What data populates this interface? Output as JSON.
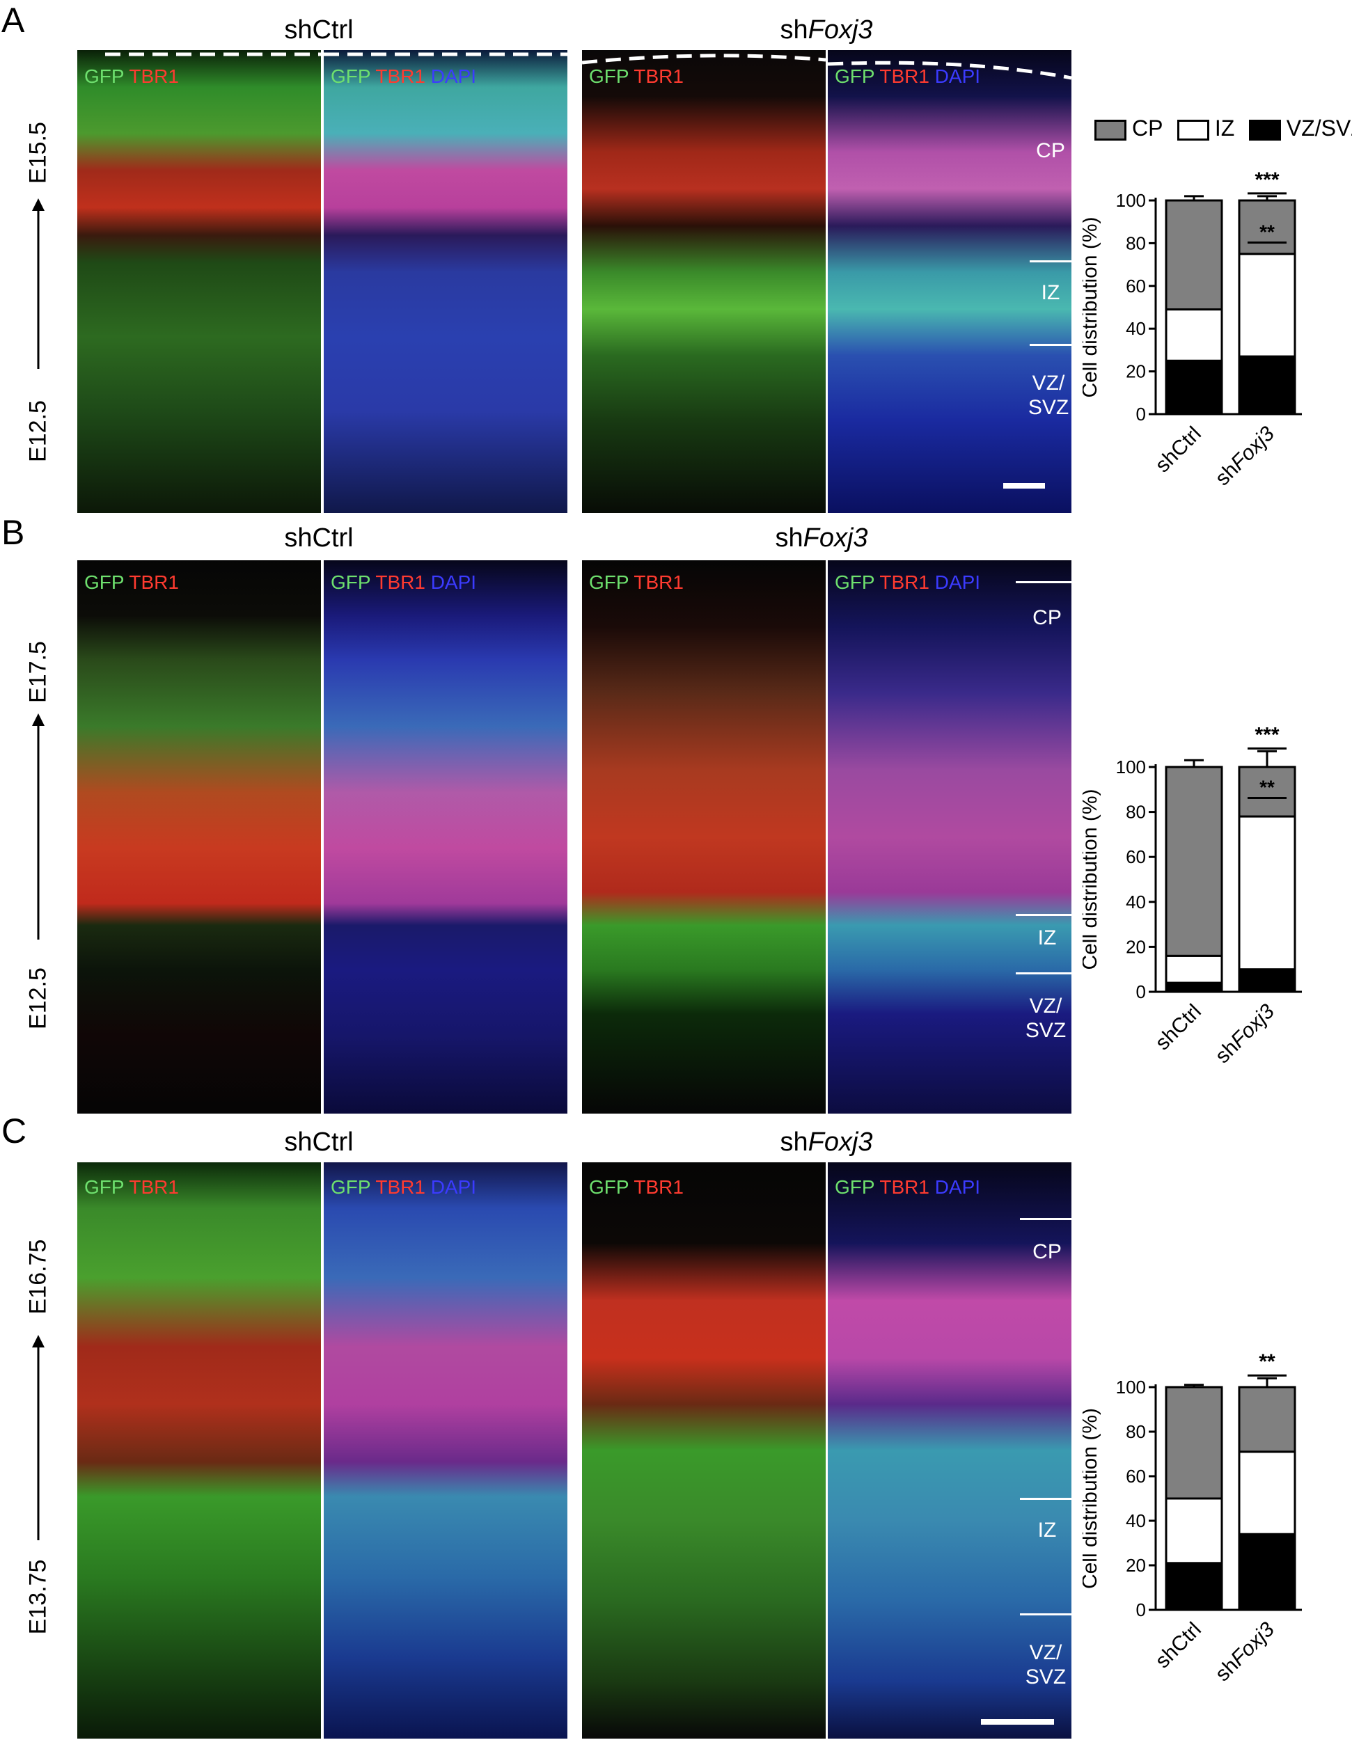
{
  "colors": {
    "cp": "#808080",
    "iz": "#ffffff",
    "vzsvz": "#000000",
    "gfp": "#6ee06e",
    "tbr1": "#ff3b30",
    "dapi": "#3b3bff"
  },
  "legend": {
    "cp": "CP",
    "iz": "IZ",
    "vzsvz": "VZ/SVZ"
  },
  "channels": {
    "gfp": "GFP",
    "tbr1": "TBR1",
    "dapi": "DAPI"
  },
  "layers": {
    "cp": "CP",
    "iz": "IZ",
    "vz": "VZ/",
    "svz": "SVZ"
  },
  "panels": [
    {
      "letter": "A",
      "ctrl_label": "shCtrl",
      "kd_prefix": "sh",
      "kd_gene": "Foxj3",
      "time_top": "E15.5",
      "time_bottom": "E12.5",
      "chart_data": {
        "type": "bar",
        "stacked": true,
        "categories": [
          "shCtrl",
          "shFoxj3"
        ],
        "ylabel": "Cell distribution (%)",
        "ylim": [
          0,
          100
        ],
        "yticks": [
          0,
          20,
          40,
          60,
          80,
          100
        ],
        "series": [
          {
            "name": "VZ/SVZ",
            "values": [
              25,
              27
            ],
            "err": [
              1.5,
              2
            ]
          },
          {
            "name": "IZ",
            "values": [
              24,
              48
            ],
            "err": [
              2,
              4
            ]
          },
          {
            "name": "CP",
            "values": [
              51,
              25
            ],
            "err": [
              2,
              2
            ]
          }
        ],
        "annotations": [
          "***",
          "**"
        ]
      }
    },
    {
      "letter": "B",
      "ctrl_label": "shCtrl",
      "kd_prefix": "sh",
      "kd_gene": "Foxj3",
      "time_top": "E17.5",
      "time_bottom": "E12.5",
      "chart_data": {
        "type": "bar",
        "stacked": true,
        "categories": [
          "shCtrl",
          "shFoxj3"
        ],
        "ylabel": "Cell distribution (%)",
        "ylim": [
          0,
          100
        ],
        "yticks": [
          0,
          20,
          40,
          60,
          80,
          100
        ],
        "series": [
          {
            "name": "VZ/SVZ",
            "values": [
              4,
              10
            ],
            "err": [
              2,
              2
            ]
          },
          {
            "name": "IZ",
            "values": [
              12,
              68
            ],
            "err": [
              2,
              7
            ]
          },
          {
            "name": "CP",
            "values": [
              84,
              22
            ],
            "err": [
              3,
              7
            ]
          }
        ],
        "annotations": [
          "***",
          "**"
        ]
      }
    },
    {
      "letter": "C",
      "ctrl_label": "shCtrl",
      "kd_prefix": "sh",
      "kd_gene": "Foxj3",
      "time_top": "E16.75",
      "time_bottom": "E13.75",
      "chart_data": {
        "type": "bar",
        "stacked": true,
        "categories": [
          "shCtrl",
          "shFoxj3"
        ],
        "ylabel": "Cell distribution (%)",
        "ylim": [
          0,
          100
        ],
        "yticks": [
          0,
          20,
          40,
          60,
          80,
          100
        ],
        "series": [
          {
            "name": "VZ/SVZ",
            "values": [
              21,
              34
            ],
            "err": [
              2,
              7
            ]
          },
          {
            "name": "IZ",
            "values": [
              29,
              37
            ],
            "err": [
              2,
              3
            ]
          },
          {
            "name": "CP",
            "values": [
              50,
              29
            ],
            "err": [
              1,
              4
            ]
          }
        ],
        "annotations": [
          "**"
        ]
      }
    }
  ]
}
